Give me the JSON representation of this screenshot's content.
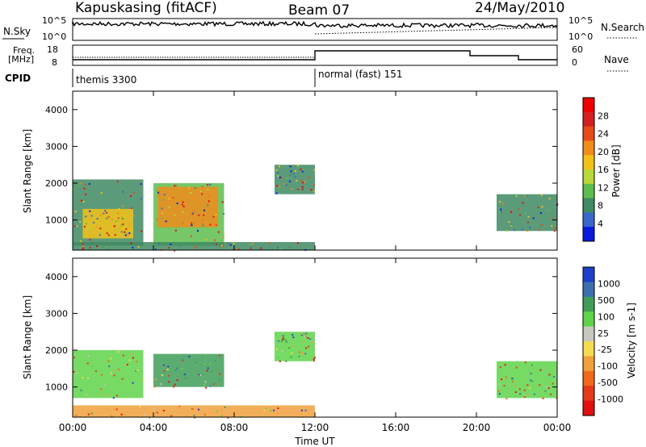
{
  "header": {
    "station": "Kapuskasing (fitACF)",
    "beam": "Beam 07",
    "date": "24/May/2010"
  },
  "noise_panel": {
    "left_label": "N.Sky",
    "right_label": "N.Search",
    "right_legend_line": "dotted",
    "y_ticks_left": [
      "10^5",
      "10^0"
    ],
    "y_ticks_right": [
      "10^5",
      "10^0"
    ]
  },
  "freq_panel": {
    "left_label_line1": "Freq.",
    "left_label_line2": "[MHz]",
    "right_label": "Nave",
    "right_legend_line": "dotted",
    "y_ticks_left": [
      "18",
      "8"
    ],
    "y_ticks_right": [
      "60",
      "0"
    ],
    "cpid_label": "CPID",
    "cpid_segments": [
      {
        "text": "themis 3300",
        "start_hour": 0,
        "end_hour": 12
      },
      {
        "text": "normal (fast) 151",
        "start_hour": 12,
        "end_hour": 24
      }
    ]
  },
  "range_panels": {
    "ylabel": "Slant Range [km]",
    "y_ticks": [
      "1000",
      "2000",
      "3000",
      "4000"
    ]
  },
  "x_axis": {
    "label": "Time UT",
    "ticks": [
      "00:00",
      "04:00",
      "08:00",
      "12:00",
      "16:00",
      "20:00",
      "00:00"
    ]
  },
  "colors": {
    "power": [
      "#0a1adb",
      "#3a66c8",
      "#3f8a63",
      "#5dbd4e",
      "#b9d83a",
      "#f3c219",
      "#f08c1c",
      "#e54a1a",
      "#d31f1f",
      "#ee0000"
    ],
    "velocity": [
      "#1f3fc8",
      "#3b6fb0",
      "#3f9d58",
      "#5fd34a",
      "#c8c8be",
      "#f4dc52",
      "#f0a03c",
      "#ef6a1a",
      "#e23a1a",
      "#e01010"
    ]
  },
  "chart_data": [
    {
      "type": "heatmap",
      "title": "Power",
      "colorbar_label": "Power [dB]",
      "colorbar_ticks": [
        "4",
        "8",
        "12",
        "16",
        "20",
        "24",
        "28"
      ],
      "xlabel": "Time UT",
      "ylabel": "Slant Range [km]",
      "x_range_hours": [
        0,
        24
      ],
      "ylim_km": [
        180,
        4500
      ],
      "regions": [
        {
          "t_start": 0.0,
          "t_end": 3.5,
          "r_min": 300,
          "r_max": 2100,
          "level": 8
        },
        {
          "t_start": 0.5,
          "t_end": 3.0,
          "r_min": 500,
          "r_max": 1300,
          "level": 20
        },
        {
          "t_start": 4.0,
          "t_end": 7.5,
          "r_min": 300,
          "r_max": 2000,
          "level": 12
        },
        {
          "t_start": 4.2,
          "t_end": 7.2,
          "r_min": 800,
          "r_max": 1900,
          "level": 24
        },
        {
          "t_start": 10.0,
          "t_end": 12.0,
          "r_min": 1700,
          "r_max": 2500,
          "level": 8
        },
        {
          "t_start": 0.0,
          "t_end": 12.0,
          "r_min": 180,
          "r_max": 400,
          "level": 8
        },
        {
          "t_start": 21.0,
          "t_end": 24.0,
          "r_min": 700,
          "r_max": 1700,
          "level": 8
        }
      ]
    },
    {
      "type": "heatmap",
      "title": "Velocity",
      "colorbar_label": "Velocity [m s-1]",
      "colorbar_ticks": [
        "1000",
        "500",
        "100",
        "25",
        "-25",
        "-100",
        "-500",
        "-1000"
      ],
      "xlabel": "Time UT",
      "ylabel": "Slant Range [km]",
      "x_range_hours": [
        0,
        24
      ],
      "ylim_km": [
        180,
        4500
      ],
      "regions": [
        {
          "t_start": 0.0,
          "t_end": 3.5,
          "r_min": 700,
          "r_max": 2000,
          "level": 25
        },
        {
          "t_start": 4.0,
          "t_end": 7.5,
          "r_min": 1000,
          "r_max": 1900,
          "level": 100
        },
        {
          "t_start": 10.0,
          "t_end": 12.0,
          "r_min": 1700,
          "r_max": 2500,
          "level": 25
        },
        {
          "t_start": 0.0,
          "t_end": 12.0,
          "r_min": 180,
          "r_max": 500,
          "level": -100
        },
        {
          "t_start": 21.0,
          "t_end": 24.0,
          "r_min": 700,
          "r_max": 1700,
          "level": 25
        }
      ]
    }
  ]
}
